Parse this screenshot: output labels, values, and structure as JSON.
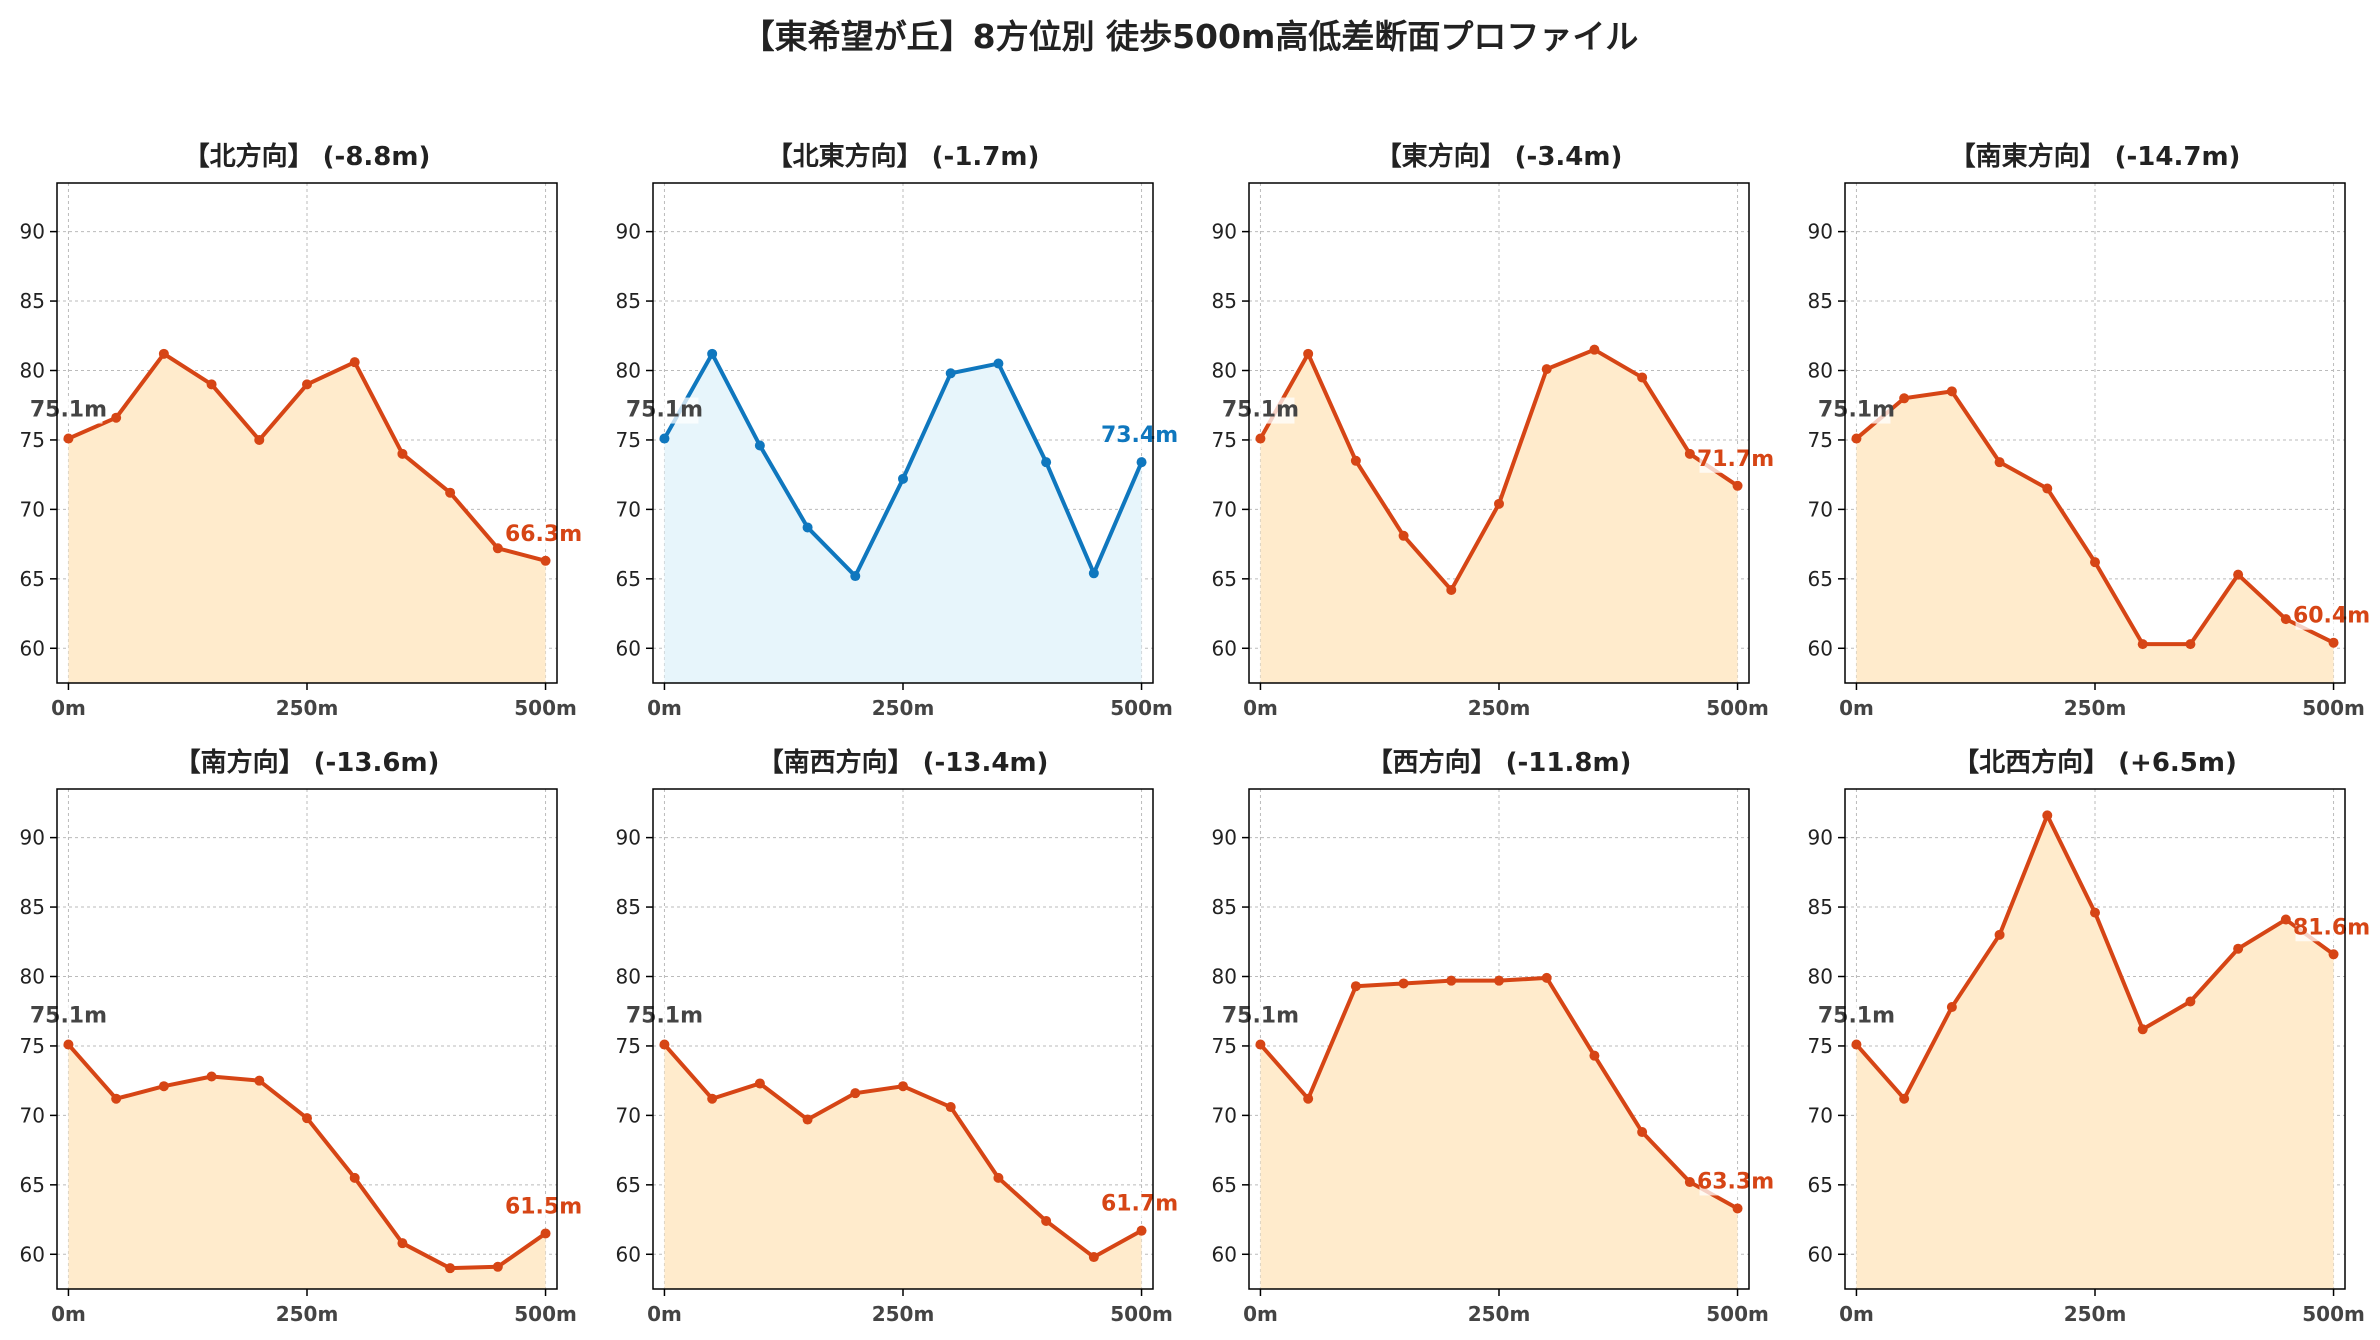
{
  "title": "【東希望が丘】8方位別 徒歩500m高低差断面プロファイル",
  "colors": {
    "down_line": "#d64515",
    "down_fill": "#ffebcc",
    "flat_line": "#0f77be",
    "flat_fill": "#e7f5fb",
    "start_label": "#444444",
    "grid": "#bbbbbb"
  },
  "chart_data": [
    {
      "type": "area",
      "title": "【北方向】 (-8.8m)",
      "x": [
        0,
        50,
        100,
        150,
        200,
        250,
        300,
        350,
        400,
        450,
        500
      ],
      "values": [
        75.1,
        76.6,
        81.2,
        79.0,
        75.0,
        79.0,
        80.6,
        74.0,
        71.2,
        67.2,
        66.3
      ],
      "start_label": "75.1m",
      "end_label": "66.3m",
      "style": "down",
      "xticks": [
        "0m",
        "250m",
        "500m"
      ],
      "yticks": [
        60,
        65,
        70,
        75,
        80,
        85,
        90
      ],
      "ylim": [
        57.5,
        93.5
      ],
      "xlim": [
        -12,
        512
      ],
      "grid": true
    },
    {
      "type": "area",
      "title": "【北東方向】 (-1.7m)",
      "x": [
        0,
        50,
        100,
        150,
        200,
        250,
        300,
        350,
        400,
        450,
        500
      ],
      "values": [
        75.1,
        81.2,
        74.6,
        68.7,
        65.2,
        72.2,
        79.8,
        80.5,
        73.4,
        65.4,
        73.4
      ],
      "start_label": "75.1m",
      "end_label": "73.4m",
      "style": "flat",
      "xticks": [
        "0m",
        "250m",
        "500m"
      ],
      "yticks": [
        60,
        65,
        70,
        75,
        80,
        85,
        90
      ],
      "ylim": [
        57.5,
        93.5
      ],
      "xlim": [
        -12,
        512
      ],
      "grid": true
    },
    {
      "type": "area",
      "title": "【東方向】 (-3.4m)",
      "x": [
        0,
        50,
        100,
        150,
        200,
        250,
        300,
        350,
        400,
        450,
        500
      ],
      "values": [
        75.1,
        81.2,
        73.5,
        68.1,
        64.2,
        70.4,
        80.1,
        81.5,
        79.5,
        74.0,
        71.7
      ],
      "start_label": "75.1m",
      "end_label": "71.7m",
      "style": "down",
      "xticks": [
        "0m",
        "250m",
        "500m"
      ],
      "yticks": [
        60,
        65,
        70,
        75,
        80,
        85,
        90
      ],
      "ylim": [
        57.5,
        93.5
      ],
      "xlim": [
        -12,
        512
      ],
      "grid": true
    },
    {
      "type": "area",
      "title": "【南東方向】 (-14.7m)",
      "x": [
        0,
        50,
        100,
        150,
        200,
        250,
        300,
        350,
        400,
        450,
        500
      ],
      "values": [
        75.1,
        78.0,
        78.5,
        73.4,
        71.5,
        66.2,
        60.3,
        60.3,
        65.3,
        62.1,
        60.4
      ],
      "start_label": "75.1m",
      "end_label": "60.4m",
      "style": "down",
      "xticks": [
        "0m",
        "250m",
        "500m"
      ],
      "yticks": [
        60,
        65,
        70,
        75,
        80,
        85,
        90
      ],
      "ylim": [
        57.5,
        93.5
      ],
      "xlim": [
        -12,
        512
      ],
      "grid": true
    },
    {
      "type": "area",
      "title": "【南方向】 (-13.6m)",
      "x": [
        0,
        50,
        100,
        150,
        200,
        250,
        300,
        350,
        400,
        450,
        500
      ],
      "values": [
        75.1,
        71.2,
        72.1,
        72.8,
        72.5,
        69.8,
        65.5,
        60.8,
        59.0,
        59.1,
        61.5
      ],
      "start_label": "75.1m",
      "end_label": "61.5m",
      "style": "down",
      "xticks": [
        "0m",
        "250m",
        "500m"
      ],
      "yticks": [
        60,
        65,
        70,
        75,
        80,
        85,
        90
      ],
      "ylim": [
        57.5,
        93.5
      ],
      "xlim": [
        -12,
        512
      ],
      "grid": true
    },
    {
      "type": "area",
      "title": "【南西方向】 (-13.4m)",
      "x": [
        0,
        50,
        100,
        150,
        200,
        250,
        300,
        350,
        400,
        450,
        500
      ],
      "values": [
        75.1,
        71.2,
        72.3,
        69.7,
        71.6,
        72.1,
        70.6,
        65.5,
        62.4,
        59.8,
        61.7
      ],
      "start_label": "75.1m",
      "end_label": "61.7m",
      "style": "down",
      "xticks": [
        "0m",
        "250m",
        "500m"
      ],
      "yticks": [
        60,
        65,
        70,
        75,
        80,
        85,
        90
      ],
      "ylim": [
        57.5,
        93.5
      ],
      "xlim": [
        -12,
        512
      ],
      "grid": true
    },
    {
      "type": "area",
      "title": "【西方向】 (-11.8m)",
      "x": [
        0,
        50,
        100,
        150,
        200,
        250,
        300,
        350,
        400,
        450,
        500
      ],
      "values": [
        75.1,
        71.2,
        79.3,
        79.5,
        79.7,
        79.7,
        79.9,
        74.3,
        68.8,
        65.2,
        63.3
      ],
      "start_label": "75.1m",
      "end_label": "63.3m",
      "style": "down",
      "xticks": [
        "0m",
        "250m",
        "500m"
      ],
      "yticks": [
        60,
        65,
        70,
        75,
        80,
        85,
        90
      ],
      "ylim": [
        57.5,
        93.5
      ],
      "xlim": [
        -12,
        512
      ],
      "grid": true
    },
    {
      "type": "area",
      "title": "【北西方向】 (+6.5m)",
      "x": [
        0,
        50,
        100,
        150,
        200,
        250,
        300,
        350,
        400,
        450,
        500
      ],
      "values": [
        75.1,
        71.2,
        77.8,
        83.0,
        91.6,
        84.6,
        76.2,
        78.2,
        82.0,
        84.1,
        81.6
      ],
      "start_label": "75.1m",
      "end_label": "81.6m",
      "style": "down",
      "xticks": [
        "0m",
        "250m",
        "500m"
      ],
      "yticks": [
        60,
        65,
        70,
        75,
        80,
        85,
        90
      ],
      "ylim": [
        57.5,
        93.5
      ],
      "xlim": [
        -12,
        512
      ],
      "grid": true
    }
  ]
}
